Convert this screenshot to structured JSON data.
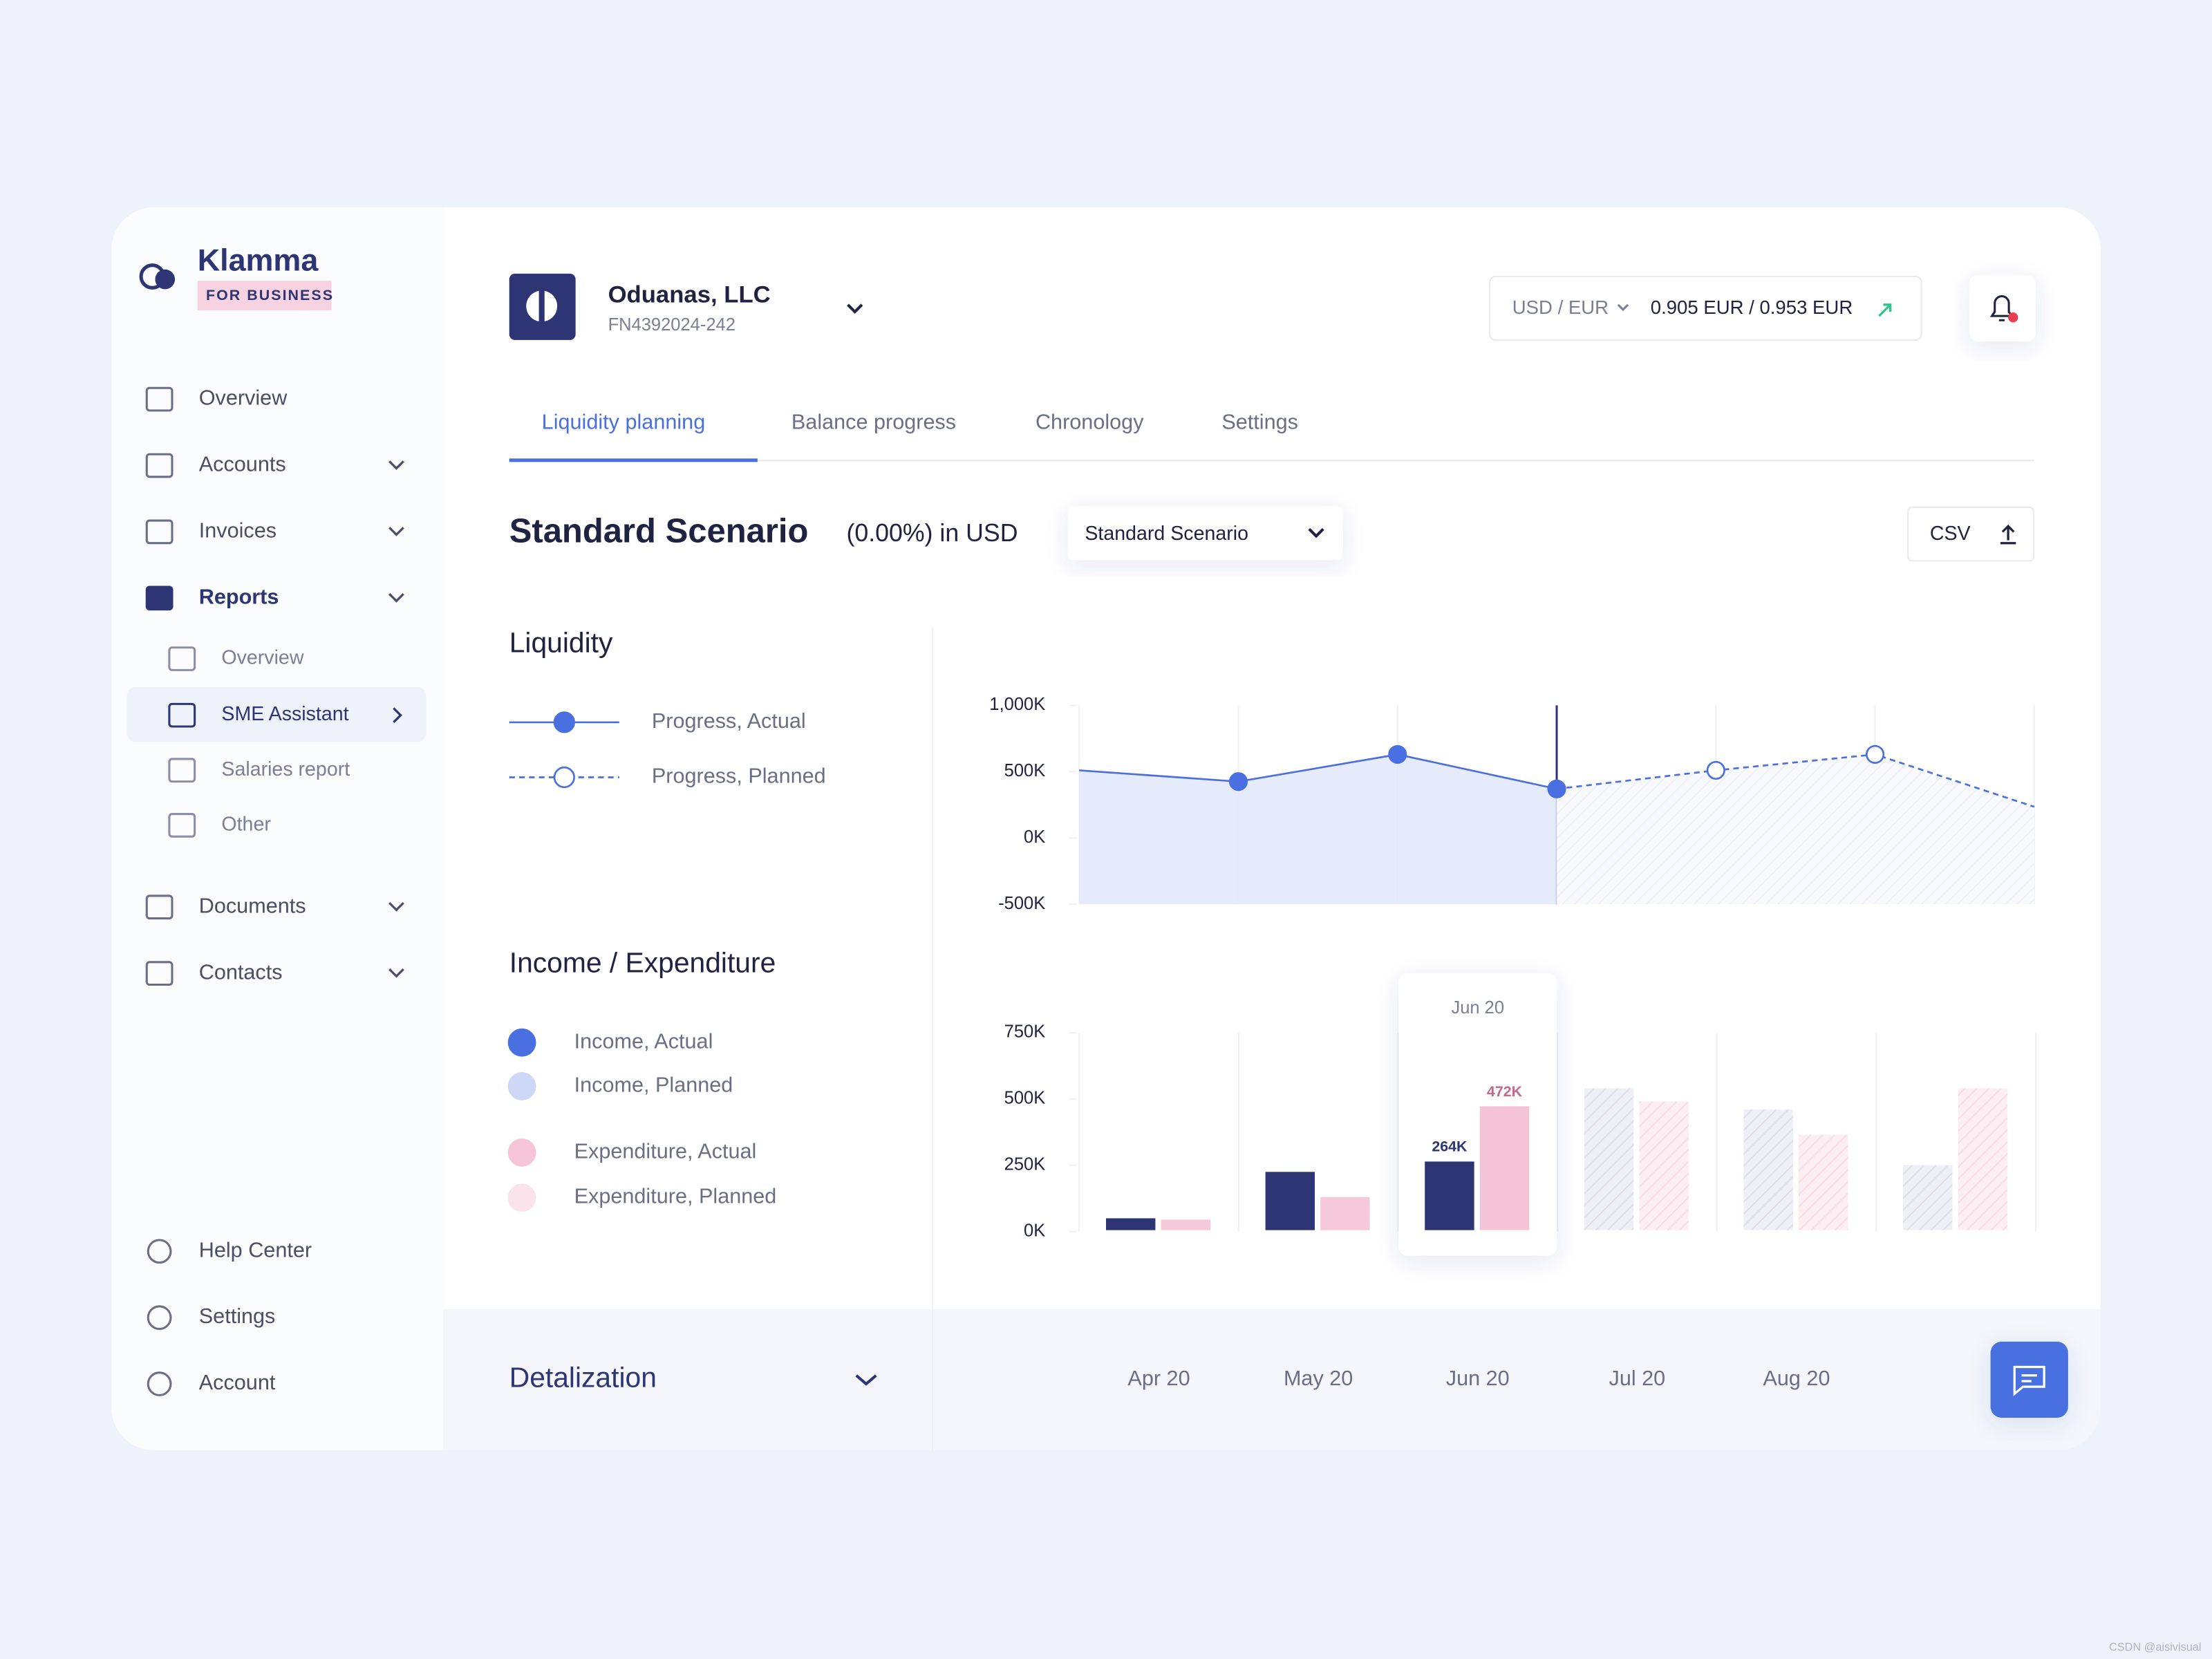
{
  "brand": {
    "name": "Klamma",
    "tag": "FOR BUSINESS"
  },
  "nav": [
    "Overview",
    "Accounts",
    "Invoices",
    "Reports"
  ],
  "reports_sub": [
    "Overview",
    "SME Assistant",
    "Salaries report",
    "Other"
  ],
  "nav2": [
    "Documents",
    "Contacts"
  ],
  "nav_bottom": [
    "Help Center",
    "Settings",
    "Account"
  ],
  "header": {
    "company": "Oduanas, LLC",
    "id": "FN4392024-242",
    "currency": "USD / EUR",
    "rate": "0.905 EUR / 0.953 EUR"
  },
  "tabs": [
    "Liquidity planning",
    "Balance progress",
    "Chronology",
    "Settings"
  ],
  "scenario": {
    "title": "Standard Scenario",
    "subtitle": "(0.00%) in USD",
    "dropdown": "Standard Scenario",
    "export": "CSV"
  },
  "footer": {
    "title": "Detalization"
  },
  "chart_data": [
    {
      "type": "line",
      "title": "Liquidity",
      "ylim": [
        -500000,
        1000000
      ],
      "yticks": [
        {
          "value": 1000000,
          "label": "1,000K"
        },
        {
          "value": 500000,
          "label": "500K"
        },
        {
          "value": 0,
          "label": "0K"
        },
        {
          "value": -500000,
          "label": "-500K"
        }
      ],
      "series": [
        {
          "name": "Progress, Actual",
          "color": "#4a6fe0",
          "style": "solid",
          "values": [
            510000,
            425000,
            630000,
            370000,
            null,
            null,
            null
          ]
        },
        {
          "name": "Progress, Planned",
          "color": "#4a6fe0",
          "style": "dashed",
          "values": [
            null,
            null,
            null,
            370000,
            510000,
            630000,
            235000
          ]
        }
      ]
    },
    {
      "type": "bar",
      "title": "Income / Expenditure",
      "categories": [
        "Apr 20",
        "May 20",
        "Jun 20",
        "Jul 20",
        "Aug 20",
        null
      ],
      "ylim": [
        0,
        750000
      ],
      "yticks": [
        {
          "value": 750000,
          "label": "750K"
        },
        {
          "value": 500000,
          "label": "500K"
        },
        {
          "value": 250000,
          "label": "250K"
        },
        {
          "value": 0,
          "label": "0K"
        }
      ],
      "highlight": "Jun 20",
      "series": [
        {
          "name": "Income, Actual",
          "color": "#2e3575",
          "legend_color": "#4a6fe0",
          "slot": 0,
          "values": [
            50000,
            225000,
            264000,
            null,
            null,
            null
          ],
          "value_labels": [
            null,
            null,
            "264K",
            null,
            null,
            null
          ]
        },
        {
          "name": "Income, Planned",
          "color": "#c9cde0",
          "legend_color": "#cdd8f7",
          "slot": 0,
          "planned": true,
          "values": [
            null,
            null,
            null,
            540000,
            460000,
            250000
          ]
        },
        {
          "name": "Expenditure, Actual",
          "color": "#f4c3d6",
          "legend_color": "#f6c6d8",
          "slot": 1,
          "values": [
            45000,
            130000,
            472000,
            null,
            null,
            null
          ],
          "value_labels": [
            null,
            null,
            "472K",
            null,
            null,
            null
          ]
        },
        {
          "name": "Expenditure, Planned",
          "color": "#f7cddd",
          "legend_color": "#fbe3ec",
          "slot": 1,
          "planned": true,
          "values": [
            null,
            null,
            null,
            490000,
            365000,
            540000
          ]
        }
      ]
    }
  ]
}
